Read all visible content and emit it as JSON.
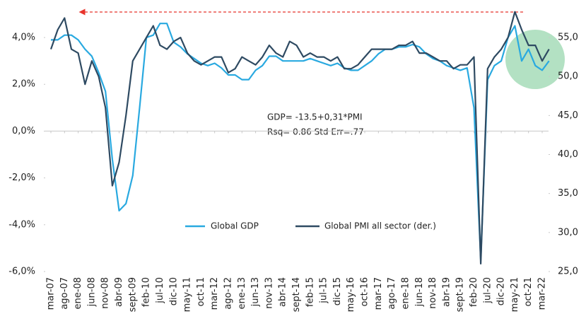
{
  "chart_data": {
    "type": "line",
    "annotations": [
      "GDP= -13.5+0,31*PMI",
      "Rsq= 0.86 Std Err=.77"
    ],
    "categories": [
      "mar-07",
      null,
      "ago-07",
      null,
      "ene-08",
      null,
      "jun-08",
      null,
      "nov-08",
      null,
      "abr-09",
      null,
      "sept-09",
      null,
      "feb-10",
      null,
      "jul-10",
      null,
      "dic-10",
      null,
      "may-11",
      null,
      "oct-11",
      null,
      "mar-12",
      null,
      "ago-12",
      null,
      "ene-13",
      null,
      "jun-13",
      null,
      "nov-13",
      null,
      "abr-14",
      null,
      "sept-14",
      null,
      "feb-15",
      null,
      "jul-15",
      null,
      "dic-15",
      null,
      "may-16",
      null,
      "oct-16",
      null,
      "mar-17",
      null,
      "ago-17",
      null,
      "ene-18",
      null,
      "jun-18",
      null,
      "nov-18",
      null,
      "abr-19",
      null,
      "sept-19",
      null,
      "feb-20",
      null,
      "jul-20",
      null,
      "dic-20",
      null,
      "may-21",
      null,
      "oct-21",
      null,
      "mar-22",
      null
    ],
    "series": [
      {
        "name": "Global GDP",
        "color": "#29a9e0",
        "axis": "y",
        "values": [
          3.9,
          3.9,
          4.1,
          4.1,
          3.9,
          3.5,
          3.2,
          2.5,
          1.7,
          -1.2,
          -3.4,
          -3.1,
          -1.9,
          1.0,
          4.0,
          4.1,
          4.6,
          4.6,
          3.8,
          3.6,
          3.3,
          3.1,
          2.9,
          2.8,
          2.9,
          2.7,
          2.4,
          2.4,
          2.2,
          2.2,
          2.6,
          2.8,
          3.2,
          3.2,
          3.0,
          3.0,
          3.0,
          3.0,
          3.1,
          3.0,
          2.9,
          2.8,
          2.9,
          2.7,
          2.6,
          2.6,
          2.8,
          3.0,
          3.3,
          3.5,
          3.5,
          3.6,
          3.6,
          3.7,
          3.6,
          3.3,
          3.1,
          3.0,
          2.8,
          2.7,
          2.6,
          2.7,
          1.0,
          -5.5,
          2.2,
          2.8,
          3.0,
          4.0,
          4.5,
          3.0,
          3.5,
          2.8,
          2.6,
          3.0
        ]
      },
      {
        "name": "Global PMI all sector (der.)",
        "color": "#2e4a62",
        "axis": "y2",
        "values": [
          53.5,
          56,
          57.5,
          53.5,
          53,
          49,
          52,
          50,
          46,
          36,
          39,
          45,
          52,
          53.5,
          55,
          56.5,
          54,
          53.5,
          54.5,
          55,
          53,
          52,
          51.5,
          52,
          52.5,
          52.5,
          50.5,
          51,
          52.5,
          52,
          51.5,
          52.5,
          54,
          53,
          52.5,
          54.5,
          54,
          52.5,
          53,
          52.5,
          52.5,
          52,
          52.5,
          51,
          51,
          51.5,
          52.5,
          53.5,
          53.5,
          53.5,
          53.5,
          54,
          54,
          54.5,
          53,
          53,
          52.5,
          52,
          52,
          51,
          51.5,
          51.5,
          52.5,
          26,
          51,
          52.5,
          53.5,
          55,
          58.3,
          56,
          54,
          54,
          52,
          53.5
        ]
      }
    ],
    "ylim": [
      -6,
      5.15
    ],
    "yticks": [
      {
        "value": -6,
        "label": "-6,0%"
      },
      {
        "value": -4,
        "label": "-4,0%"
      },
      {
        "value": -2,
        "label": "-2,0%"
      },
      {
        "value": 0,
        "label": "0,0%"
      },
      {
        "value": 2,
        "label": "2,0%"
      },
      {
        "value": 4,
        "label": "4,0%"
      }
    ],
    "y2lim": [
      25,
      58.45
    ],
    "y2ticks": [
      {
        "value": 25,
        "label": "25,0"
      },
      {
        "value": 30,
        "label": "30,0"
      },
      {
        "value": 35,
        "label": "35,0"
      },
      {
        "value": 40,
        "label": "40,0"
      },
      {
        "value": 45,
        "label": "45,0"
      },
      {
        "value": 50,
        "label": "50,0"
      },
      {
        "value": 55,
        "label": "55,0"
      }
    ],
    "grid": false
  }
}
